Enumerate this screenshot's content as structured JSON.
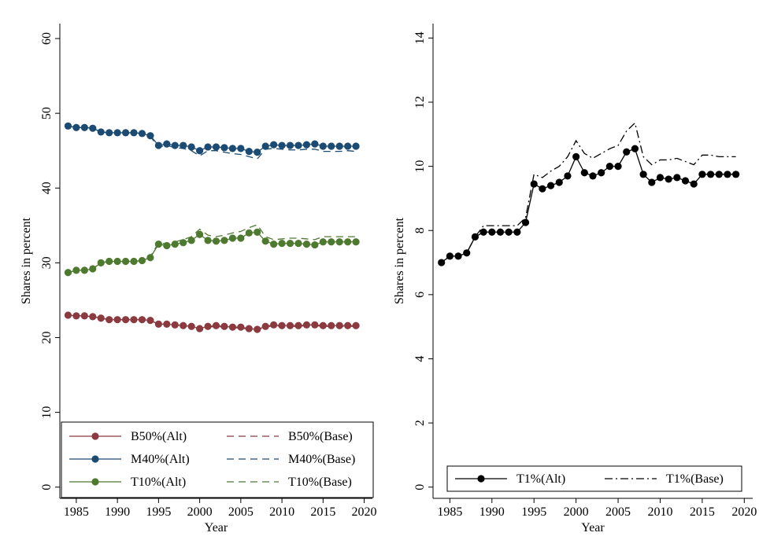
{
  "chart_data": [
    {
      "type": "line",
      "xlabel": "Year",
      "ylabel": "Shares in percent",
      "xlim": [
        1983,
        2021
      ],
      "ylim": [
        -1.5,
        62
      ],
      "xticks": [
        1985,
        1990,
        1995,
        2000,
        2005,
        2010,
        2015,
        2020
      ],
      "yticks": [
        0,
        10,
        20,
        30,
        40,
        50,
        60
      ],
      "x": [
        1984,
        1985,
        1986,
        1987,
        1988,
        1989,
        1990,
        1991,
        1992,
        1993,
        1994,
        1995,
        1996,
        1997,
        1998,
        1999,
        2000,
        2001,
        2002,
        2003,
        2004,
        2005,
        2006,
        2007,
        2008,
        2009,
        2010,
        2011,
        2012,
        2013,
        2014,
        2015,
        2016,
        2017,
        2018,
        2019
      ],
      "grid": false,
      "legend_position": "bottom-inside",
      "series": [
        {
          "name": "B50%(Alt)",
          "style": "solid-marker",
          "color": "#8b3a40",
          "values": [
            23.0,
            22.9,
            22.9,
            22.8,
            22.6,
            22.4,
            22.4,
            22.4,
            22.4,
            22.4,
            22.3,
            21.8,
            21.8,
            21.7,
            21.6,
            21.5,
            21.2,
            21.5,
            21.6,
            21.5,
            21.4,
            21.4,
            21.2,
            21.1,
            21.5,
            21.7,
            21.6,
            21.6,
            21.6,
            21.7,
            21.7,
            21.6,
            21.6,
            21.6,
            21.6,
            21.6
          ]
        },
        {
          "name": "B50%(Base)",
          "style": "dashed",
          "color": "#8b3a40",
          "values": [
            23.0,
            22.9,
            22.9,
            22.8,
            22.6,
            22.4,
            22.4,
            22.4,
            22.4,
            22.4,
            22.3,
            21.8,
            21.8,
            21.7,
            21.6,
            21.5,
            21.1,
            21.4,
            21.5,
            21.4,
            21.3,
            21.3,
            21.1,
            21.0,
            21.4,
            21.6,
            21.5,
            21.5,
            21.5,
            21.6,
            21.6,
            21.5,
            21.5,
            21.5,
            21.5,
            21.5
          ]
        },
        {
          "name": "M40%(Alt)",
          "style": "solid-marker",
          "color": "#1b4a73",
          "values": [
            48.3,
            48.1,
            48.1,
            48.0,
            47.5,
            47.4,
            47.4,
            47.4,
            47.4,
            47.3,
            47.0,
            45.7,
            45.9,
            45.7,
            45.7,
            45.5,
            45.0,
            45.5,
            45.5,
            45.4,
            45.3,
            45.3,
            44.9,
            44.8,
            45.6,
            45.8,
            45.7,
            45.7,
            45.7,
            45.8,
            45.9,
            45.6,
            45.6,
            45.6,
            45.6,
            45.6
          ]
        },
        {
          "name": "M40%(Base)",
          "style": "dashed",
          "color": "#1b4a73",
          "values": [
            48.3,
            48.1,
            48.1,
            48.0,
            47.5,
            47.4,
            47.4,
            47.4,
            47.4,
            47.3,
            46.9,
            45.5,
            45.7,
            45.4,
            45.3,
            45.0,
            44.3,
            45.0,
            45.0,
            44.8,
            44.6,
            44.5,
            44.2,
            43.9,
            45.2,
            45.3,
            45.2,
            45.1,
            45.1,
            45.2,
            45.2,
            44.9,
            44.9,
            44.9,
            45.0,
            44.9
          ]
        },
        {
          "name": "T10%(Alt)",
          "style": "solid-marker",
          "color": "#4e7a30",
          "values": [
            28.7,
            29.0,
            29.0,
            29.2,
            30.0,
            30.2,
            30.2,
            30.2,
            30.2,
            30.3,
            30.7,
            32.5,
            32.3,
            32.5,
            32.7,
            33.0,
            33.8,
            33.0,
            32.9,
            33.0,
            33.3,
            33.3,
            34.0,
            34.1,
            32.9,
            32.5,
            32.6,
            32.6,
            32.6,
            32.5,
            32.4,
            32.8,
            32.8,
            32.8,
            32.8,
            32.8
          ]
        },
        {
          "name": "T10%(Base)",
          "style": "dashed",
          "color": "#4e7a30",
          "values": [
            28.7,
            29.0,
            29.0,
            29.2,
            30.0,
            30.2,
            30.2,
            30.2,
            30.2,
            30.3,
            30.8,
            32.7,
            32.5,
            32.8,
            33.1,
            33.5,
            34.5,
            33.7,
            33.5,
            33.7,
            34.0,
            34.2,
            34.7,
            35.1,
            33.5,
            33.1,
            33.2,
            33.3,
            33.3,
            33.2,
            33.1,
            33.5,
            33.5,
            33.5,
            33.5,
            33.5
          ]
        }
      ]
    },
    {
      "type": "line",
      "xlabel": "Year",
      "ylabel": "Shares in percent",
      "xlim": [
        1983,
        2021
      ],
      "ylim": [
        -0.35,
        14.45
      ],
      "xticks": [
        1985,
        1990,
        1995,
        2000,
        2005,
        2010,
        2015,
        2020
      ],
      "yticks": [
        0,
        2,
        4,
        6,
        8,
        10,
        12,
        14
      ],
      "x": [
        1984,
        1985,
        1986,
        1987,
        1988,
        1989,
        1990,
        1991,
        1992,
        1993,
        1994,
        1995,
        1996,
        1997,
        1998,
        1999,
        2000,
        2001,
        2002,
        2003,
        2004,
        2005,
        2006,
        2007,
        2008,
        2009,
        2010,
        2011,
        2012,
        2013,
        2014,
        2015,
        2016,
        2017,
        2018,
        2019
      ],
      "grid": false,
      "legend_position": "bottom-inside",
      "series": [
        {
          "name": "T1%(Alt)",
          "style": "solid-marker",
          "color": "#000000",
          "values": [
            7.0,
            7.2,
            7.2,
            7.3,
            7.8,
            7.95,
            7.95,
            7.95,
            7.95,
            7.95,
            8.25,
            9.45,
            9.3,
            9.4,
            9.5,
            9.7,
            10.3,
            9.8,
            9.7,
            9.8,
            10.0,
            10.0,
            10.45,
            10.55,
            9.75,
            9.5,
            9.65,
            9.6,
            9.65,
            9.55,
            9.45,
            9.75,
            9.75,
            9.75,
            9.75,
            9.75
          ]
        },
        {
          "name": "T1%(Base)",
          "style": "dashdot",
          "color": "#000000",
          "values": [
            7.0,
            7.2,
            7.2,
            7.3,
            7.8,
            8.15,
            8.15,
            8.15,
            8.15,
            8.15,
            8.4,
            9.75,
            9.65,
            9.85,
            10.0,
            10.3,
            10.8,
            10.4,
            10.25,
            10.4,
            10.55,
            10.65,
            11.1,
            11.35,
            10.3,
            10.05,
            10.2,
            10.2,
            10.25,
            10.15,
            10.05,
            10.35,
            10.35,
            10.3,
            10.3,
            10.3
          ]
        }
      ]
    }
  ]
}
